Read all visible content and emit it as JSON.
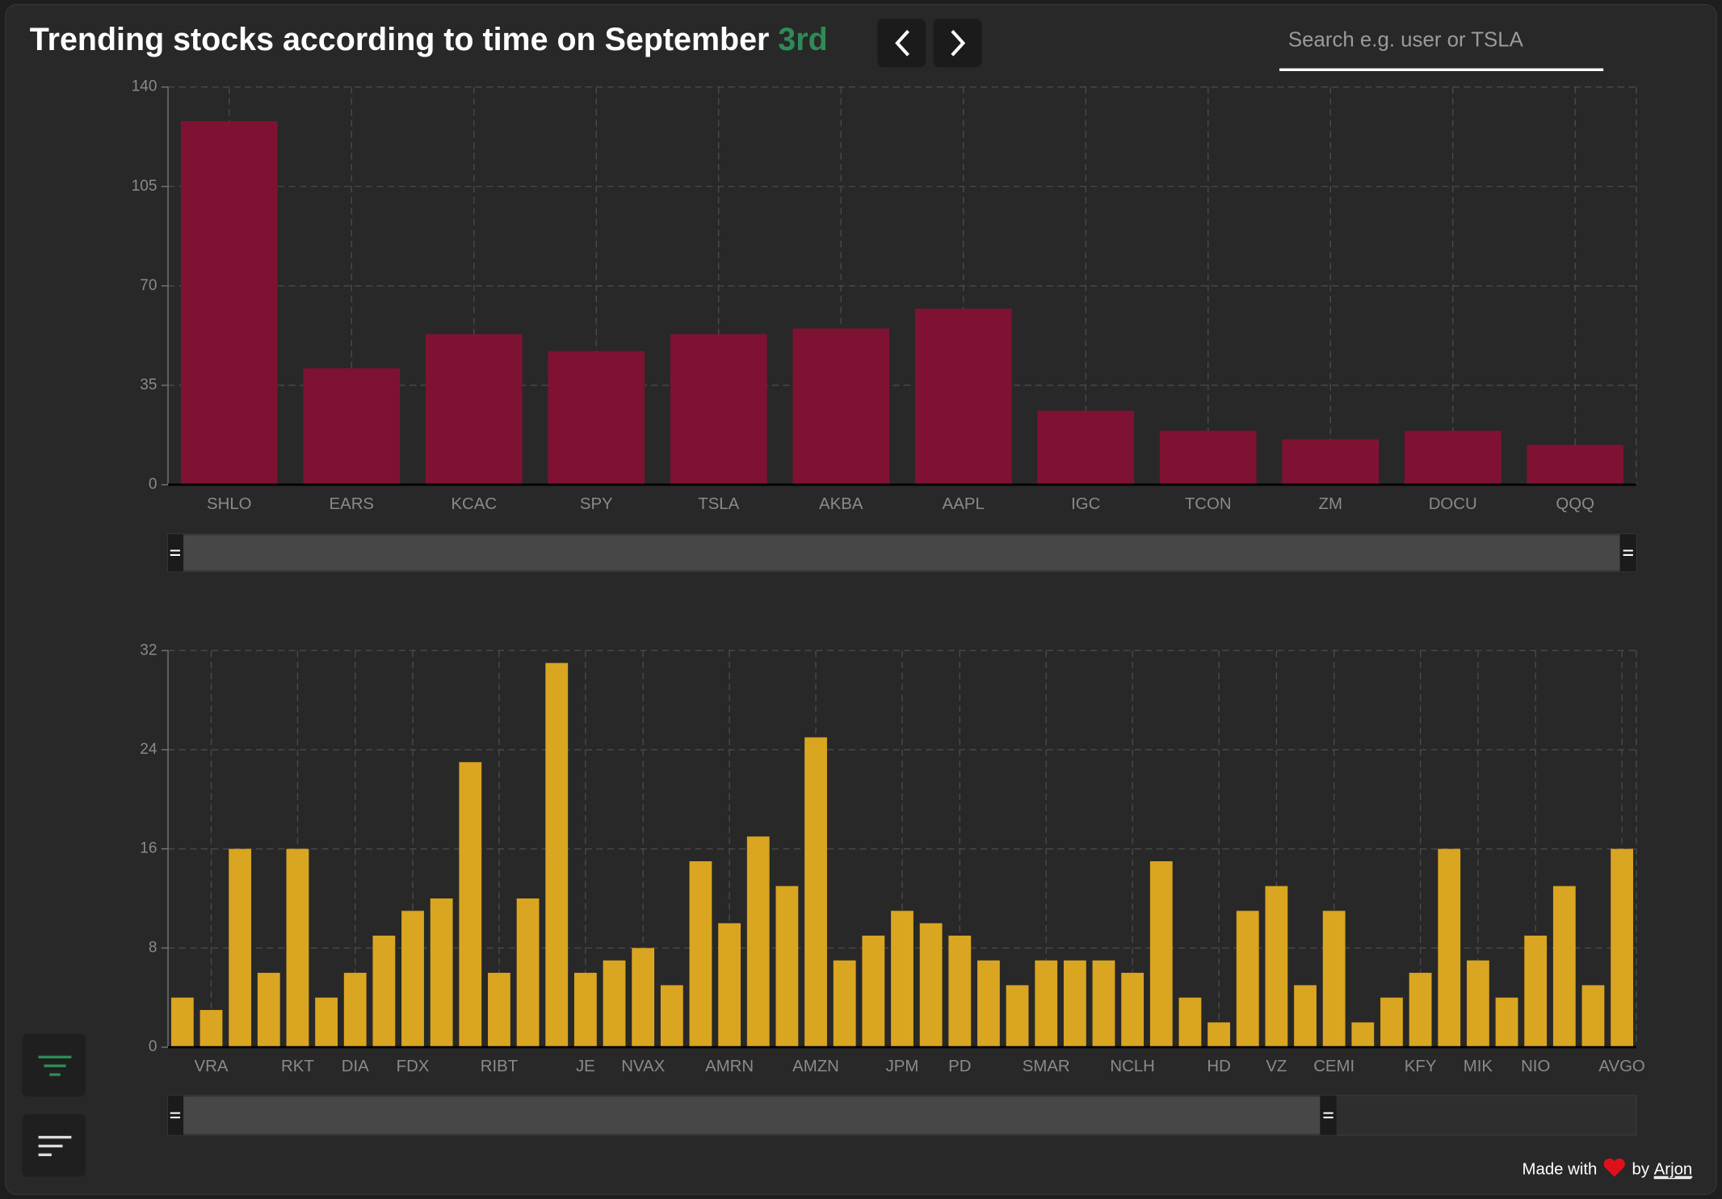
{
  "header": {
    "title": "Trending stocks according to time on September",
    "date": "3rd",
    "search_placeholder": "Search e.g. user or TSLA"
  },
  "chart_data": [
    {
      "type": "bar",
      "categories": [
        "SHLO",
        "EARS",
        "KCAC",
        "SPY",
        "TSLA",
        "AKBA",
        "AAPL",
        "IGC",
        "TCON",
        "ZM",
        "DOCU",
        "QQQ"
      ],
      "values": [
        128,
        41,
        53,
        47,
        53,
        55,
        62,
        26,
        19,
        16,
        19,
        14
      ],
      "color": "#7f1233",
      "ylim": [
        0,
        140
      ],
      "yticks": [
        0,
        35,
        70,
        105,
        140
      ],
      "grid": true
    },
    {
      "type": "bar",
      "categories": [
        null,
        "VRA",
        null,
        null,
        "RKT",
        null,
        "DIA",
        null,
        "FDX",
        null,
        null,
        "RIBT",
        null,
        null,
        "JE",
        null,
        "NVAX",
        null,
        null,
        "AMRN",
        null,
        null,
        "AMZN",
        null,
        null,
        "JPM",
        null,
        "PD",
        null,
        null,
        "SMAR",
        null,
        null,
        "NCLH",
        null,
        null,
        "HD",
        null,
        "VZ",
        null,
        "CEMI",
        null,
        null,
        "KFY",
        null,
        "MIK",
        null,
        "NIO",
        null,
        null,
        "AVGO"
      ],
      "values": [
        4,
        3,
        16,
        6,
        16,
        4,
        6,
        9,
        11,
        12,
        23,
        6,
        12,
        31,
        6,
        7,
        8,
        5,
        15,
        10,
        17,
        13,
        25,
        7,
        9,
        11,
        10,
        9,
        7,
        5,
        7,
        7,
        7,
        6,
        15,
        4,
        2,
        11,
        13,
        5,
        11,
        2,
        4,
        6,
        16,
        7,
        4,
        9,
        13,
        5,
        16
      ],
      "color": "#daa520",
      "ylim": [
        0,
        32
      ],
      "yticks": [
        0,
        8,
        16,
        24,
        32
      ],
      "grid": true
    }
  ],
  "footer": {
    "made_with": "Made with",
    "by": "by",
    "author": "Arjon"
  }
}
